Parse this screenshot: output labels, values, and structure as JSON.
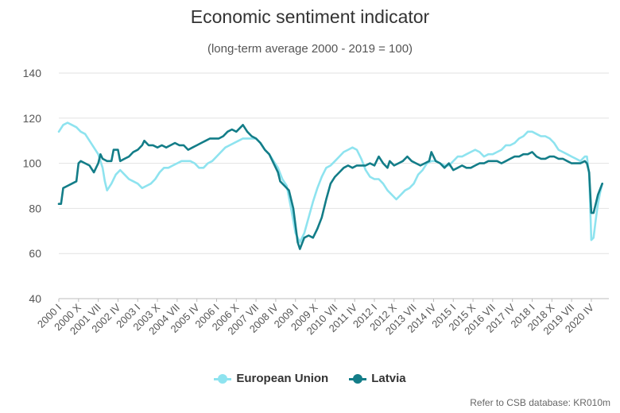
{
  "chart_data": {
    "type": "line",
    "title": "Economic sentiment indicator",
    "subtitle": "(long-term average 2000 - 2019 = 100)",
    "xlabel": "",
    "ylabel": "",
    "ylim": [
      40,
      140
    ],
    "yticks": [
      40,
      60,
      80,
      100,
      120,
      140
    ],
    "grid": true,
    "legend_position": "bottom",
    "x_tick_labels": [
      "2000 I",
      "2000 X",
      "2001 VII",
      "2002 IV",
      "2003 I",
      "2003 X",
      "2004 VII",
      "2005 IV",
      "2006 I",
      "2006 X",
      "2007 VII",
      "2008 IV",
      "2009 I",
      "2009 X",
      "2010 VII",
      "2011 IV",
      "2012 I",
      "2012 X",
      "2013 VII",
      "2014 IV",
      "2015 I",
      "2015 X",
      "2016 VII",
      "2017 IV",
      "2018 I",
      "2018 X",
      "2019 VII",
      "2020 IV"
    ],
    "x_start": "2000-01",
    "x_end": "2020-12",
    "series": [
      {
        "name": "European Union",
        "color": "#8ee3ef",
        "points": [
          [
            "2000-01",
            114
          ],
          [
            "2000-03",
            117
          ],
          [
            "2000-05",
            118
          ],
          [
            "2000-07",
            117
          ],
          [
            "2000-09",
            116
          ],
          [
            "2000-11",
            114
          ],
          [
            "2001-01",
            113
          ],
          [
            "2001-03",
            110
          ],
          [
            "2001-05",
            107
          ],
          [
            "2001-07",
            104
          ],
          [
            "2001-09",
            98
          ],
          [
            "2001-10",
            92
          ],
          [
            "2001-11",
            88
          ],
          [
            "2002-01",
            91
          ],
          [
            "2002-03",
            95
          ],
          [
            "2002-05",
            97
          ],
          [
            "2002-07",
            95
          ],
          [
            "2002-09",
            93
          ],
          [
            "2002-11",
            92
          ],
          [
            "2003-01",
            91
          ],
          [
            "2003-03",
            89
          ],
          [
            "2003-05",
            90
          ],
          [
            "2003-07",
            91
          ],
          [
            "2003-09",
            93
          ],
          [
            "2003-11",
            96
          ],
          [
            "2004-01",
            98
          ],
          [
            "2004-03",
            98
          ],
          [
            "2004-05",
            99
          ],
          [
            "2004-07",
            100
          ],
          [
            "2004-09",
            101
          ],
          [
            "2004-11",
            101
          ],
          [
            "2005-01",
            101
          ],
          [
            "2005-03",
            100
          ],
          [
            "2005-05",
            98
          ],
          [
            "2005-07",
            98
          ],
          [
            "2005-09",
            100
          ],
          [
            "2005-11",
            101
          ],
          [
            "2006-01",
            103
          ],
          [
            "2006-03",
            105
          ],
          [
            "2006-05",
            107
          ],
          [
            "2006-07",
            108
          ],
          [
            "2006-09",
            109
          ],
          [
            "2006-11",
            110
          ],
          [
            "2007-01",
            111
          ],
          [
            "2007-03",
            111
          ],
          [
            "2007-05",
            111
          ],
          [
            "2007-07",
            111
          ],
          [
            "2007-09",
            109
          ],
          [
            "2007-11",
            106
          ],
          [
            "2008-01",
            104
          ],
          [
            "2008-03",
            101
          ],
          [
            "2008-05",
            98
          ],
          [
            "2008-07",
            93
          ],
          [
            "2008-09",
            90
          ],
          [
            "2008-11",
            80
          ],
          [
            "2009-01",
            69
          ],
          [
            "2009-03",
            65
          ],
          [
            "2009-05",
            69
          ],
          [
            "2009-07",
            76
          ],
          [
            "2009-09",
            83
          ],
          [
            "2009-11",
            89
          ],
          [
            "2010-01",
            94
          ],
          [
            "2010-03",
            98
          ],
          [
            "2010-05",
            99
          ],
          [
            "2010-07",
            101
          ],
          [
            "2010-09",
            103
          ],
          [
            "2010-11",
            105
          ],
          [
            "2011-01",
            106
          ],
          [
            "2011-03",
            107
          ],
          [
            "2011-05",
            106
          ],
          [
            "2011-07",
            102
          ],
          [
            "2011-09",
            97
          ],
          [
            "2011-11",
            94
          ],
          [
            "2012-01",
            93
          ],
          [
            "2012-03",
            93
          ],
          [
            "2012-05",
            91
          ],
          [
            "2012-07",
            88
          ],
          [
            "2012-09",
            86
          ],
          [
            "2012-11",
            84
          ],
          [
            "2013-01",
            86
          ],
          [
            "2013-03",
            88
          ],
          [
            "2013-05",
            89
          ],
          [
            "2013-07",
            91
          ],
          [
            "2013-09",
            95
          ],
          [
            "2013-11",
            97
          ],
          [
            "2014-01",
            100
          ],
          [
            "2014-03",
            101
          ],
          [
            "2014-05",
            101
          ],
          [
            "2014-07",
            100
          ],
          [
            "2014-09",
            99
          ],
          [
            "2014-11",
            99
          ],
          [
            "2015-01",
            101
          ],
          [
            "2015-03",
            103
          ],
          [
            "2015-05",
            103
          ],
          [
            "2015-07",
            104
          ],
          [
            "2015-09",
            105
          ],
          [
            "2015-11",
            106
          ],
          [
            "2016-01",
            105
          ],
          [
            "2016-03",
            103
          ],
          [
            "2016-05",
            104
          ],
          [
            "2016-07",
            104
          ],
          [
            "2016-09",
            105
          ],
          [
            "2016-11",
            106
          ],
          [
            "2017-01",
            108
          ],
          [
            "2017-03",
            108
          ],
          [
            "2017-05",
            109
          ],
          [
            "2017-07",
            111
          ],
          [
            "2017-09",
            112
          ],
          [
            "2017-11",
            114
          ],
          [
            "2018-01",
            114
          ],
          [
            "2018-03",
            113
          ],
          [
            "2018-05",
            112
          ],
          [
            "2018-07",
            112
          ],
          [
            "2018-09",
            111
          ],
          [
            "2018-11",
            109
          ],
          [
            "2019-01",
            106
          ],
          [
            "2019-03",
            105
          ],
          [
            "2019-05",
            104
          ],
          [
            "2019-07",
            103
          ],
          [
            "2019-09",
            102
          ],
          [
            "2019-11",
            101
          ],
          [
            "2020-01",
            103
          ],
          [
            "2020-02",
            103
          ],
          [
            "2020-03",
            95
          ],
          [
            "2020-04",
            66
          ],
          [
            "2020-05",
            67
          ],
          [
            "2020-06",
            75
          ],
          [
            "2020-07",
            82
          ],
          [
            "2020-08",
            87
          ],
          [
            "2020-09",
            91
          ]
        ]
      },
      {
        "name": "Latvia",
        "color": "#137d88",
        "points": [
          [
            "2000-01",
            82
          ],
          [
            "2000-02",
            82
          ],
          [
            "2000-03",
            89
          ],
          [
            "2000-05",
            90
          ],
          [
            "2000-07",
            91
          ],
          [
            "2000-09",
            92
          ],
          [
            "2000-10",
            100
          ],
          [
            "2000-11",
            101
          ],
          [
            "2001-01",
            100
          ],
          [
            "2001-03",
            99
          ],
          [
            "2001-05",
            96
          ],
          [
            "2001-07",
            100
          ],
          [
            "2001-08",
            104
          ],
          [
            "2001-09",
            102
          ],
          [
            "2001-11",
            101
          ],
          [
            "2002-01",
            101
          ],
          [
            "2002-02",
            106
          ],
          [
            "2002-04",
            106
          ],
          [
            "2002-05",
            101
          ],
          [
            "2002-07",
            102
          ],
          [
            "2002-09",
            103
          ],
          [
            "2002-11",
            105
          ],
          [
            "2003-01",
            106
          ],
          [
            "2003-03",
            108
          ],
          [
            "2003-04",
            110
          ],
          [
            "2003-06",
            108
          ],
          [
            "2003-08",
            108
          ],
          [
            "2003-10",
            107
          ],
          [
            "2003-12",
            108
          ],
          [
            "2004-02",
            107
          ],
          [
            "2004-04",
            108
          ],
          [
            "2004-06",
            109
          ],
          [
            "2004-08",
            108
          ],
          [
            "2004-10",
            108
          ],
          [
            "2004-12",
            106
          ],
          [
            "2005-02",
            107
          ],
          [
            "2005-04",
            108
          ],
          [
            "2005-06",
            109
          ],
          [
            "2005-08",
            110
          ],
          [
            "2005-10",
            111
          ],
          [
            "2005-12",
            111
          ],
          [
            "2006-02",
            111
          ],
          [
            "2006-04",
            112
          ],
          [
            "2006-06",
            114
          ],
          [
            "2006-08",
            115
          ],
          [
            "2006-10",
            114
          ],
          [
            "2006-12",
            116
          ],
          [
            "2007-01",
            117
          ],
          [
            "2007-03",
            114
          ],
          [
            "2007-05",
            112
          ],
          [
            "2007-07",
            111
          ],
          [
            "2007-09",
            109
          ],
          [
            "2007-11",
            106
          ],
          [
            "2008-01",
            104
          ],
          [
            "2008-03",
            100
          ],
          [
            "2008-05",
            96
          ],
          [
            "2008-06",
            92
          ],
          [
            "2008-08",
            90
          ],
          [
            "2008-10",
            88
          ],
          [
            "2008-12",
            80
          ],
          [
            "2009-02",
            65
          ],
          [
            "2009-03",
            62
          ],
          [
            "2009-05",
            67
          ],
          [
            "2009-07",
            68
          ],
          [
            "2009-09",
            67
          ],
          [
            "2009-11",
            71
          ],
          [
            "2010-01",
            76
          ],
          [
            "2010-03",
            84
          ],
          [
            "2010-05",
            91
          ],
          [
            "2010-07",
            94
          ],
          [
            "2010-09",
            96
          ],
          [
            "2010-11",
            98
          ],
          [
            "2011-01",
            99
          ],
          [
            "2011-03",
            98
          ],
          [
            "2011-05",
            99
          ],
          [
            "2011-07",
            99
          ],
          [
            "2011-09",
            99
          ],
          [
            "2011-11",
            100
          ],
          [
            "2012-01",
            99
          ],
          [
            "2012-03",
            103
          ],
          [
            "2012-05",
            100
          ],
          [
            "2012-07",
            98
          ],
          [
            "2012-08",
            101
          ],
          [
            "2012-10",
            99
          ],
          [
            "2012-12",
            100
          ],
          [
            "2013-02",
            101
          ],
          [
            "2013-04",
            103
          ],
          [
            "2013-06",
            101
          ],
          [
            "2013-08",
            100
          ],
          [
            "2013-10",
            99
          ],
          [
            "2013-12",
            100
          ],
          [
            "2014-02",
            101
          ],
          [
            "2014-03",
            105
          ],
          [
            "2014-05",
            101
          ],
          [
            "2014-07",
            100
          ],
          [
            "2014-09",
            98
          ],
          [
            "2014-11",
            100
          ],
          [
            "2015-01",
            97
          ],
          [
            "2015-03",
            98
          ],
          [
            "2015-05",
            99
          ],
          [
            "2015-07",
            98
          ],
          [
            "2015-09",
            98
          ],
          [
            "2015-11",
            99
          ],
          [
            "2016-01",
            100
          ],
          [
            "2016-03",
            100
          ],
          [
            "2016-05",
            101
          ],
          [
            "2016-07",
            101
          ],
          [
            "2016-09",
            101
          ],
          [
            "2016-11",
            100
          ],
          [
            "2017-01",
            101
          ],
          [
            "2017-03",
            102
          ],
          [
            "2017-05",
            103
          ],
          [
            "2017-07",
            103
          ],
          [
            "2017-09",
            104
          ],
          [
            "2017-11",
            104
          ],
          [
            "2018-01",
            105
          ],
          [
            "2018-03",
            103
          ],
          [
            "2018-05",
            102
          ],
          [
            "2018-07",
            102
          ],
          [
            "2018-09",
            103
          ],
          [
            "2018-11",
            103
          ],
          [
            "2019-01",
            102
          ],
          [
            "2019-03",
            102
          ],
          [
            "2019-05",
            101
          ],
          [
            "2019-07",
            100
          ],
          [
            "2019-09",
            100
          ],
          [
            "2019-11",
            100
          ],
          [
            "2020-01",
            101
          ],
          [
            "2020-02",
            100
          ],
          [
            "2020-03",
            96
          ],
          [
            "2020-04",
            78
          ],
          [
            "2020-05",
            78
          ],
          [
            "2020-06",
            82
          ],
          [
            "2020-07",
            86
          ],
          [
            "2020-09",
            91
          ]
        ]
      }
    ],
    "source_note": "Refer to CSB database: KR010m"
  }
}
